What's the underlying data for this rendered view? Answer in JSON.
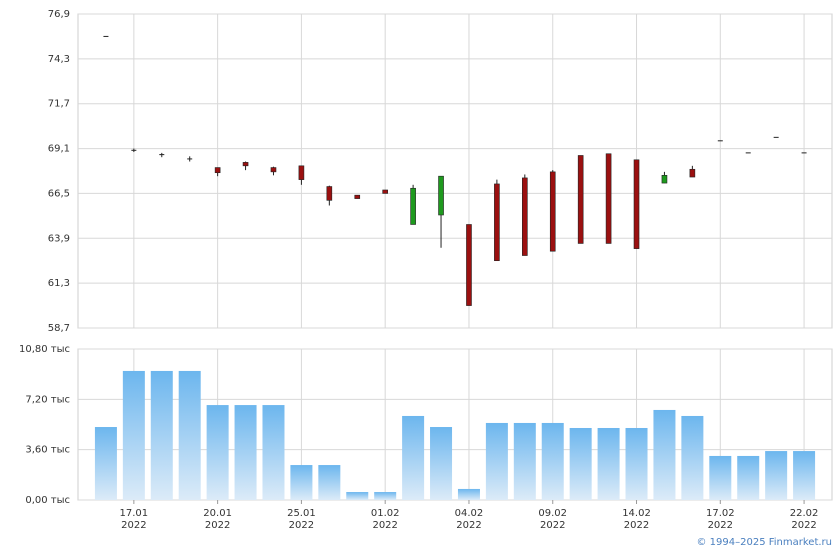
{
  "chart_data": [
    {
      "type": "candlestick",
      "open": [
        75.6,
        69.0,
        68.75,
        68.5,
        68.0,
        68.3,
        68.0,
        68.1,
        66.9,
        66.4,
        66.7,
        64.7,
        65.25,
        64.7,
        67.05,
        67.4,
        67.75,
        68.7,
        68.8,
        68.45,
        67.1,
        67.9,
        69.55,
        68.85,
        69.75,
        68.85
      ],
      "high": [
        75.6,
        69.1,
        68.85,
        68.65,
        68.0,
        68.35,
        68.05,
        68.1,
        66.95,
        66.4,
        66.7,
        67.0,
        67.5,
        64.7,
        67.3,
        67.6,
        67.85,
        68.7,
        68.8,
        68.45,
        67.75,
        68.1,
        69.55,
        68.85,
        69.75,
        68.85
      ],
      "low": [
        75.6,
        68.9,
        68.6,
        68.35,
        67.5,
        67.85,
        67.55,
        67.0,
        65.8,
        66.2,
        66.5,
        64.7,
        63.35,
        60.0,
        62.6,
        62.9,
        63.15,
        63.6,
        63.6,
        63.3,
        67.1,
        67.45,
        69.55,
        68.85,
        69.75,
        68.85
      ],
      "close": [
        75.6,
        69.0,
        68.75,
        68.5,
        67.7,
        68.1,
        67.75,
        67.3,
        66.1,
        66.2,
        66.5,
        66.8,
        67.5,
        60.0,
        62.6,
        62.9,
        63.15,
        63.6,
        63.6,
        63.3,
        67.55,
        67.45,
        69.55,
        68.85,
        69.75,
        68.85
      ],
      "up_color": "#1e9a1e",
      "down_color": "#9b1010",
      "flat_color": "#222222",
      "ylim": [
        58.7,
        76.9
      ],
      "yticks": [
        {
          "value": 58.7,
          "label": "58,7"
        },
        {
          "value": 61.3,
          "label": "61,3"
        },
        {
          "value": 63.9,
          "label": "63,9"
        },
        {
          "value": 66.5,
          "label": "66,5"
        },
        {
          "value": 69.1,
          "label": "69,1"
        },
        {
          "value": 71.7,
          "label": "71,7"
        },
        {
          "value": 74.3,
          "label": "74,3"
        },
        {
          "value": 76.9,
          "label": "76,9"
        }
      ],
      "grid": true
    },
    {
      "type": "bar",
      "categories": [
        null,
        "17.01",
        null,
        null,
        "20.01",
        null,
        null,
        "25.01",
        null,
        null,
        "01.02",
        null,
        null,
        "04.02",
        null,
        null,
        "09.02",
        null,
        null,
        "14.02",
        null,
        null,
        "17.02",
        null,
        null,
        "22.02"
      ],
      "years": [
        null,
        "2022",
        null,
        null,
        "2022",
        null,
        null,
        "2022",
        null,
        null,
        "2022",
        null,
        null,
        "2022",
        null,
        null,
        "2022",
        null,
        null,
        "2022",
        null,
        null,
        "2022",
        null,
        null,
        "2022"
      ],
      "values": [
        5.22,
        9.23,
        9.23,
        9.23,
        6.79,
        6.79,
        6.79,
        2.5,
        2.5,
        0.57,
        0.57,
        6.01,
        5.22,
        0.79,
        5.51,
        5.51,
        5.51,
        5.15,
        5.15,
        5.15,
        6.44,
        6.01,
        3.15,
        3.15,
        3.5,
        3.5
      ],
      "color": "#6cb6ee",
      "ylim": [
        0,
        10.8
      ],
      "yticks": [
        {
          "value": 0,
          "label": "0,00 тыс"
        },
        {
          "value": 3.6,
          "label": "3,60 тыс"
        },
        {
          "value": 7.2,
          "label": "7,20 тыс"
        },
        {
          "value": 10.8,
          "label": "10,80 тыс"
        }
      ],
      "grid": true,
      "footer": "© 1994–2025 Finmarket.ru"
    }
  ]
}
